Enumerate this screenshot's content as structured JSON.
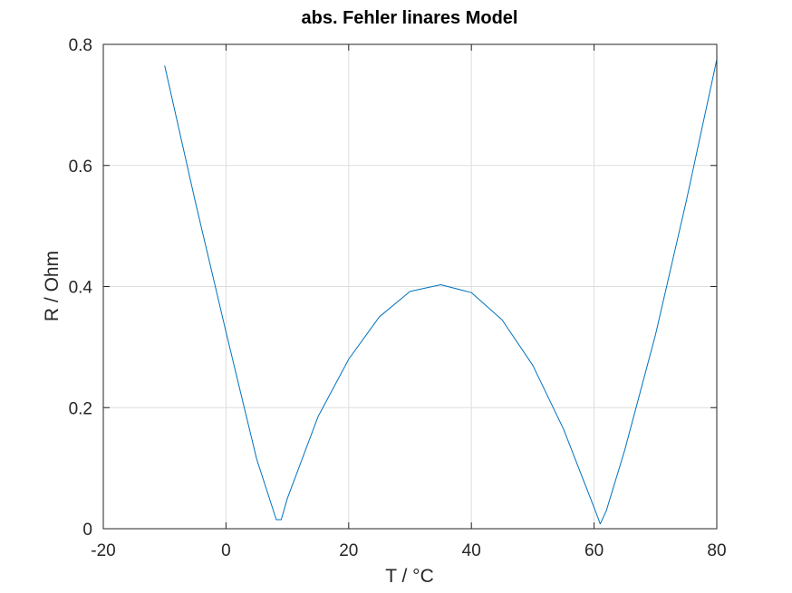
{
  "chart_data": {
    "type": "line",
    "title": "abs. Fehler linares Model",
    "xlabel": "T / °C",
    "ylabel": "R / Ohm",
    "xlim": [
      -20,
      80
    ],
    "ylim": [
      0,
      0.8
    ],
    "xticks": [
      -20,
      0,
      20,
      40,
      60,
      80
    ],
    "yticks": [
      0,
      0.2,
      0.4,
      0.6,
      0.8
    ],
    "xtick_labels": [
      "-20",
      "0",
      "20",
      "40",
      "60",
      "80"
    ],
    "ytick_labels": [
      "0",
      "0.2",
      "0.4",
      "0.6",
      "0.8"
    ],
    "grid": true,
    "series": [
      {
        "color": "#0072bd",
        "x": [
          -10,
          -5,
          0,
          5,
          8.2,
          9,
          10,
          15,
          20,
          25,
          30,
          35,
          40,
          45,
          50,
          55,
          60,
          61,
          62,
          65,
          70,
          75,
          80
        ],
        "y": [
          0.765,
          0.54,
          0.325,
          0.115,
          0.015,
          0.015,
          0.05,
          0.185,
          0.28,
          0.35,
          0.392,
          0.403,
          0.39,
          0.345,
          0.27,
          0.165,
          0.035,
          0.008,
          0.03,
          0.13,
          0.32,
          0.54,
          0.775
        ]
      }
    ]
  }
}
